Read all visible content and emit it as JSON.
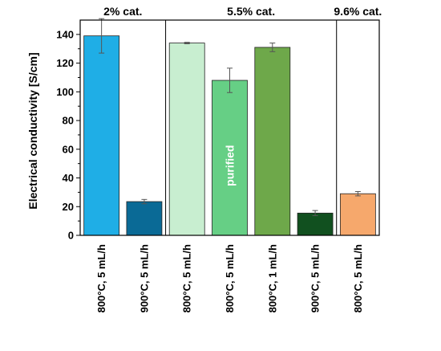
{
  "chart_data": {
    "type": "bar",
    "ylabel": "Electrical conductivity [S/cm]",
    "ylim": [
      0,
      150
    ],
    "yticks": [
      0,
      20,
      40,
      60,
      80,
      100,
      120,
      140
    ],
    "groups": [
      {
        "label": "2% cat.",
        "bar_count": 2
      },
      {
        "label": "5.5% cat.",
        "bar_count": 4
      },
      {
        "label": "9.6% cat.",
        "bar_count": 1
      }
    ],
    "categories": [
      "800°C, 5 mL/h",
      "900°C, 5 mL/h",
      "800°C, 5 mL/h",
      "800°C, 5 mL/h",
      "800°C, 1 mL/h",
      "900°C, 5 mL/h",
      "800°C, 5 mL/h"
    ],
    "values": [
      139,
      23.5,
      134,
      108,
      131,
      15.5,
      29
    ],
    "errors": [
      12,
      1.5,
      0.5,
      8.5,
      3,
      1.8,
      1.5
    ],
    "colors": [
      "#1FAEE6",
      "#0A6A96",
      "#C8EED0",
      "#66CF85",
      "#6EA84A",
      "#11501F",
      "#F6A86C"
    ],
    "bar_annotations": [
      {
        "index": 3,
        "text": "purified"
      }
    ]
  }
}
